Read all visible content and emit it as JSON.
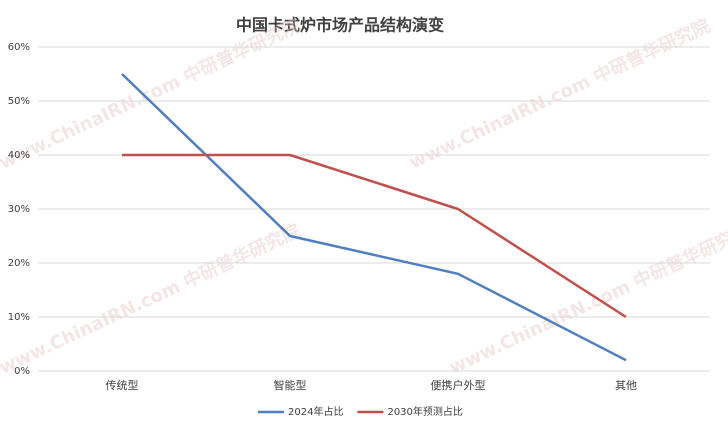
{
  "chart_data": {
    "type": "line",
    "title": "中国卡式炉市场产品结构演变",
    "watermark": "www.ChinaIRN.com 中研普华研究院",
    "categories": [
      "传统型",
      "智能型",
      "便携户外型",
      "其他"
    ],
    "series": [
      {
        "name": "2024年占比",
        "color": "#4f7fbe",
        "values": [
          55,
          25,
          18,
          2
        ]
      },
      {
        "name": "2030年预测占比",
        "color": "#c0504d",
        "values": [
          40,
          40,
          30,
          10
        ]
      }
    ],
    "ylim": [
      0,
      60
    ],
    "yticks": [
      {
        "value": 0,
        "label": "0%"
      },
      {
        "value": 10,
        "label": "10%"
      },
      {
        "value": 20,
        "label": "20%"
      },
      {
        "value": 30,
        "label": "30%"
      },
      {
        "value": 40,
        "label": "40%"
      },
      {
        "value": 50,
        "label": "50%"
      },
      {
        "value": 60,
        "label": "60%"
      }
    ],
    "grid": true,
    "legend": "bottom"
  }
}
